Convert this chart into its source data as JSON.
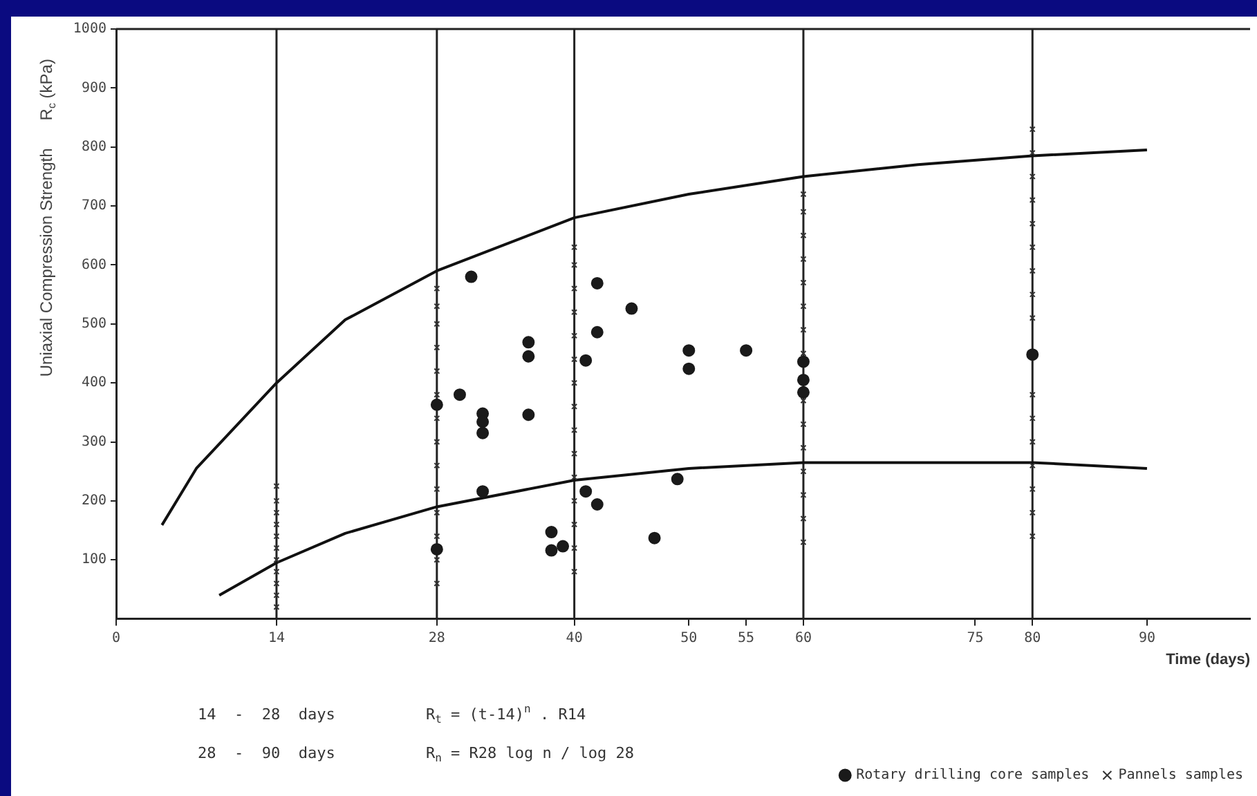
{
  "chart_data": {
    "type": "scatter",
    "xlabel": "Time (days)",
    "ylabel": "Uniaxial Compression Strength      R$_{c}$ (kPa)",
    "xlim": [
      0,
      99
    ],
    "ylim": [
      0,
      1000
    ],
    "xticks": [
      0,
      14,
      28,
      40,
      50,
      55,
      60,
      75,
      80,
      90
    ],
    "yticks": [
      100,
      200,
      300,
      400,
      500,
      600,
      700,
      800,
      900,
      1000
    ],
    "grid": false,
    "legend": "bottom right",
    "ref_lines": [
      {
        "axis": "x",
        "value": 14
      },
      {
        "axis": "x",
        "value": 28
      },
      {
        "axis": "x",
        "value": 40
      },
      {
        "axis": "x",
        "value": 60
      },
      {
        "axis": "x",
        "value": 80
      }
    ],
    "annotations": [
      "14  -  28  days",
      "R$_{t}$ = (t-14)$^{n}$ . R14",
      "28  -  90  days",
      "R$_{n}$ = R28 log n / log 28"
    ],
    "series": [
      {
        "type": "scatter",
        "name": "Rotary drilling core samples",
        "color": "#1a1a1a",
        "marker": "circle",
        "x": [
          31,
          30,
          32,
          32,
          32,
          36,
          36,
          36,
          32,
          38,
          38,
          39,
          42,
          42,
          45,
          41,
          41,
          42,
          50,
          50,
          55,
          49,
          47,
          28,
          28,
          60,
          60,
          60,
          80
        ],
        "values": [
          580,
          380,
          348,
          334,
          315,
          469,
          445,
          346,
          216,
          147,
          116,
          123,
          569,
          486,
          526,
          438,
          216,
          194,
          455,
          424,
          455,
          237,
          137,
          363,
          118,
          436,
          405,
          384,
          448
        ]
      },
      {
        "type": "scatter",
        "name": "Pannels samples",
        "color": "#333333",
        "marker": "cross",
        "x": [
          14,
          14,
          14,
          14,
          14,
          14,
          14,
          14,
          14,
          14,
          14,
          28,
          28,
          28,
          28,
          28,
          28,
          28,
          28,
          28,
          28,
          28,
          28,
          28,
          28,
          40,
          40,
          40,
          40,
          40,
          40,
          40,
          40,
          40,
          40,
          40,
          40,
          40,
          40,
          40,
          60,
          60,
          60,
          60,
          60,
          60,
          60,
          60,
          60,
          60,
          60,
          60,
          60,
          60,
          60,
          60,
          80,
          80,
          80,
          80,
          80,
          80,
          80,
          80,
          80,
          80,
          80,
          80,
          80,
          80,
          80,
          80
        ],
        "values": [
          20,
          40,
          60,
          80,
          100,
          120,
          140,
          160,
          180,
          200,
          225,
          60,
          100,
          140,
          180,
          220,
          260,
          300,
          340,
          380,
          420,
          460,
          500,
          530,
          560,
          80,
          120,
          160,
          200,
          240,
          280,
          320,
          360,
          400,
          440,
          480,
          520,
          560,
          600,
          630,
          130,
          170,
          210,
          250,
          290,
          330,
          370,
          410,
          450,
          490,
          530,
          570,
          610,
          650,
          690,
          720,
          140,
          180,
          220,
          260,
          300,
          340,
          380,
          510,
          550,
          590,
          630,
          670,
          710,
          750,
          790,
          830
        ]
      },
      {
        "type": "line",
        "color": "#111111",
        "marker": "none",
        "x": [
          4,
          7,
          14,
          20,
          28,
          40,
          50,
          60,
          70,
          80,
          90
        ],
        "values": [
          159,
          255,
          400,
          507,
          590,
          680,
          720,
          750,
          770,
          785,
          795
        ]
      },
      {
        "type": "line",
        "color": "#111111",
        "marker": "none",
        "x": [
          9,
          14,
          20,
          28,
          40,
          50,
          60,
          80,
          90
        ],
        "values": [
          40,
          95,
          145,
          190,
          235,
          255,
          265,
          265,
          255
        ]
      }
    ]
  }
}
